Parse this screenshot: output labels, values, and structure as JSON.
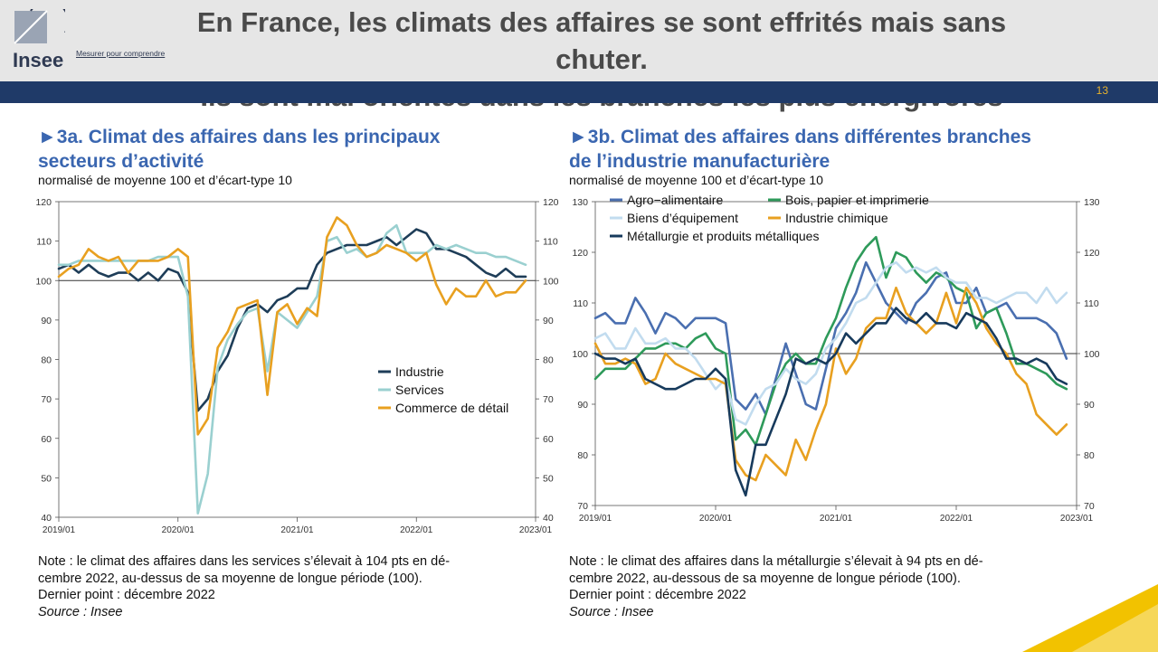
{
  "header": {
    "logo_name": "Insee",
    "logo_tagline": "Mesurer pour comprendre",
    "title_line1": "En France, les climats des affaires se sont effrités mais sans chuter.",
    "title_line2": "Ils sont mal orientés dans les branches les plus énergivores",
    "page_number": "13"
  },
  "colors": {
    "header_bg": "#e6e6e6",
    "bar": "#1f3a68",
    "accent": "#e8b22c",
    "chart_title": "#3a66b0"
  },
  "left": {
    "title_line1": "►3a. Climat des affaires dans les principaux",
    "title_line2": "secteurs d’activité",
    "subtitle": "normalisé de moyenne 100 et d’écart-type 10",
    "note_line1": "Note : le climat des affaires dans les services s’élevait à 104 pts en dé-",
    "note_line2": "cembre 2022, au-dessus de sa moyenne de longue période (100).",
    "note_line3": "Dernier point : décembre 2022",
    "source": "Source : Insee"
  },
  "right": {
    "title_line1": "►3b. Climat des affaires dans différentes branches",
    "title_line2": "de l’industrie manufacturière",
    "subtitle": "normalisé de moyenne 100 et d’écart-type 10",
    "note_line1": "Note : le climat des affaires dans la métallurgie s’élevait à 94 pts en dé-",
    "note_line2": "cembre 2022, au-dessous de sa moyenne de longue période (100).",
    "note_line3": "Dernier point : décembre 2022",
    "source": "Source : Insee"
  },
  "chart_data": [
    {
      "type": "line",
      "title": "3a. Climat des affaires dans les principaux secteurs d’activité",
      "x_tick_labels": [
        "2019/01",
        "2020/01",
        "2021/01",
        "2022/01",
        "2023/01"
      ],
      "x_range_months": [
        0,
        48
      ],
      "ylim": [
        40,
        120
      ],
      "y_ticks": [
        40,
        50,
        60,
        70,
        80,
        90,
        100,
        110,
        120
      ],
      "reference_line": 100,
      "legend_position": "middle-right",
      "series": [
        {
          "name": "Industrie",
          "color": "#1e3d58",
          "values": [
            103,
            104,
            102,
            104,
            102,
            101,
            102,
            102,
            100,
            102,
            100,
            103,
            102,
            97,
            67,
            70,
            77,
            81,
            88,
            93,
            94,
            92,
            95,
            96,
            98,
            98,
            104,
            107,
            108,
            109,
            109,
            109,
            110,
            111,
            109,
            111,
            113,
            112,
            108,
            108,
            107,
            106,
            104,
            102,
            101,
            103,
            101,
            101
          ]
        },
        {
          "name": "Services",
          "color": "#9ad0d0",
          "values": [
            104,
            104,
            105,
            105,
            105,
            105,
            105,
            105,
            105,
            105,
            106,
            106,
            106,
            96,
            41,
            51,
            78,
            85,
            89,
            92,
            93,
            77,
            92,
            90,
            88,
            92,
            96,
            110,
            111,
            107,
            108,
            106,
            107,
            112,
            114,
            107,
            107,
            107,
            109,
            108,
            109,
            108,
            107,
            107,
            106,
            106,
            105,
            104
          ]
        },
        {
          "name": "Commerce de détail",
          "color": "#e8a020",
          "values": [
            101,
            103,
            104,
            108,
            106,
            105,
            106,
            102,
            105,
            105,
            105,
            106,
            108,
            106,
            61,
            65,
            83,
            87,
            93,
            94,
            95,
            71,
            92,
            94,
            89,
            93,
            91,
            111,
            116,
            114,
            109,
            106,
            107,
            109,
            108,
            107,
            105,
            107,
            99,
            94,
            98,
            96,
            96,
            100,
            96,
            97,
            97,
            100
          ]
        }
      ]
    },
    {
      "type": "line",
      "title": "3b. Climat des affaires dans différentes branches de l’industrie manufacturière",
      "x_tick_labels": [
        "2019/01",
        "2020/01",
        "2021/01",
        "2022/01",
        "2023/01"
      ],
      "x_range_months": [
        0,
        48
      ],
      "ylim": [
        70,
        130
      ],
      "y_ticks": [
        70,
        80,
        90,
        100,
        110,
        120,
        130
      ],
      "reference_line": 100,
      "legend_position": "top-left",
      "series": [
        {
          "name": "Agro−alimentaire",
          "color": "#4a6fb0",
          "values": [
            107,
            108,
            106,
            106,
            111,
            108,
            104,
            108,
            107,
            105,
            107,
            107,
            107,
            106,
            91,
            89,
            92,
            88,
            95,
            102,
            96,
            90,
            89,
            97,
            105,
            108,
            112,
            118,
            114,
            110,
            108,
            106,
            110,
            112,
            115,
            116,
            110,
            110,
            113,
            108,
            109,
            110,
            107,
            107,
            107,
            106,
            104,
            99
          ]
        },
        {
          "name": "Bois, papier et imprimerie",
          "color": "#2e9a5a",
          "values": [
            95,
            97,
            97,
            97,
            99,
            101,
            101,
            102,
            102,
            101,
            103,
            104,
            101,
            100,
            83,
            85,
            82,
            88,
            94,
            98,
            100,
            98,
            98,
            103,
            107,
            113,
            118,
            121,
            123,
            115,
            120,
            119,
            116,
            114,
            116,
            115,
            113,
            112,
            105,
            108,
            109,
            104,
            98,
            98,
            97,
            96,
            94,
            93
          ]
        },
        {
          "name": "Biens d’équipement",
          "color": "#c2dcef",
          "values": [
            103,
            104,
            101,
            101,
            105,
            102,
            102,
            103,
            101,
            101,
            99,
            96,
            93,
            95,
            87,
            86,
            90,
            93,
            94,
            97,
            95,
            94,
            96,
            101,
            103,
            106,
            110,
            111,
            114,
            117,
            118,
            116,
            117,
            116,
            117,
            115,
            114,
            114,
            111,
            111,
            110,
            111,
            112,
            112,
            110,
            113,
            110,
            112
          ]
        },
        {
          "name": "Industrie chimique",
          "color": "#e8a020",
          "values": [
            102,
            98,
            98,
            99,
            98,
            94,
            95,
            100,
            98,
            97,
            96,
            95,
            95,
            94,
            79,
            76,
            75,
            80,
            78,
            76,
            83,
            79,
            85,
            90,
            101,
            96,
            99,
            105,
            107,
            107,
            113,
            108,
            106,
            104,
            106,
            112,
            106,
            113,
            110,
            105,
            102,
            100,
            96,
            94,
            88,
            86,
            84,
            86
          ]
        },
        {
          "name": "Métallurgie et produits métalliques",
          "color": "#173a5c",
          "values": [
            100,
            99,
            99,
            98,
            99,
            95,
            94,
            93,
            93,
            94,
            95,
            95,
            97,
            95,
            77,
            72,
            82,
            82,
            87,
            92,
            99,
            98,
            99,
            98,
            100,
            104,
            102,
            104,
            106,
            106,
            109,
            107,
            106,
            108,
            106,
            106,
            105,
            108,
            107,
            106,
            103,
            99,
            99,
            98,
            99,
            98,
            95,
            94
          ]
        }
      ]
    }
  ]
}
